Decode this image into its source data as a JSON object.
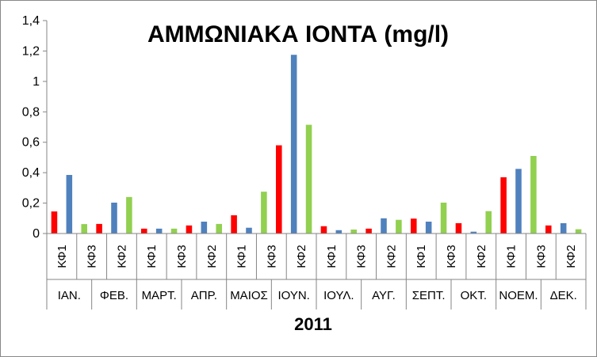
{
  "chart_data": {
    "type": "bar",
    "title": "ΑΜΜΩΝΙΑΚΑ ΙΟΝΤΑ (mg/l)",
    "xlabel": "2011",
    "ylabel": "",
    "ylim": [
      0,
      1.4
    ],
    "y_ticks": [
      "0",
      "0,2",
      "0,4",
      "0,6",
      "0,8",
      "1",
      "1,2",
      "1,4"
    ],
    "y_tick_values": [
      0,
      0.2,
      0.4,
      0.6,
      0.8,
      1.0,
      1.2,
      1.4
    ],
    "grid": false,
    "legend": "none",
    "months": [
      "ΙΑΝ.",
      "ΦΕΒ.",
      "ΜΑΡΤ.",
      "ΑΠΡ.",
      "ΜΑΙΟΣ",
      "ΙΟΥΝ.",
      "ΙΟΥΛ.",
      "ΑΥΓ.",
      "ΣΕΠΤ.",
      "ΟΚΤ.",
      "ΝΟΕΜ.",
      "ΔΕΚ."
    ],
    "categories": [
      "ΚΦ1",
      "ΚΦ2",
      "ΚΦ3",
      "ΚΦ1",
      "ΚΦ2",
      "ΚΦ3",
      "ΚΦ1",
      "ΚΦ2",
      "ΚΦ3",
      "ΚΦ1",
      "ΚΦ2",
      "ΚΦ3",
      "ΚΦ1",
      "ΚΦ2",
      "ΚΦ3",
      "ΚΦ1",
      "ΚΦ2",
      "ΚΦ3",
      "ΚΦ1",
      "ΚΦ2",
      "ΚΦ3",
      "ΚΦ1",
      "ΚΦ2",
      "ΚΦ3",
      "ΚΦ1",
      "ΚΦ2",
      "ΚΦ3",
      "ΚΦ1",
      "ΚΦ2",
      "ΚΦ3",
      "ΚΦ1",
      "ΚΦ2",
      "ΚΦ3",
      "ΚΦ1",
      "ΚΦ2",
      "ΚΦ3"
    ],
    "visible_category_labels": [
      "ΚΦ1",
      "",
      "ΚΦ3",
      "",
      "ΚΦ2",
      "",
      "ΚΦ1",
      "",
      "ΚΦ3",
      "",
      "ΚΦ2",
      "",
      "ΚΦ1",
      "",
      "ΚΦ3",
      "",
      "ΚΦ2",
      "",
      "ΚΦ1",
      "",
      "ΚΦ3",
      "",
      "ΚΦ2",
      "",
      "ΚΦ1",
      "",
      "ΚΦ3",
      "",
      "ΚΦ2",
      "",
      "ΚΦ1",
      "",
      "ΚΦ3",
      "",
      "ΚΦ2",
      ""
    ],
    "values": [
      0.145,
      0.385,
      0.062,
      0.063,
      0.203,
      0.24,
      0.032,
      0.032,
      0.032,
      0.053,
      0.078,
      0.063,
      0.12,
      0.038,
      0.275,
      0.58,
      1.175,
      0.715,
      0.048,
      0.022,
      0.026,
      0.032,
      0.1,
      0.09,
      0.098,
      0.078,
      0.203,
      0.068,
      0.012,
      0.147,
      0.37,
      0.425,
      0.51,
      0.053,
      0.068,
      0.028
    ],
    "bar_colors": [
      "#ff0000",
      "#4f81bd",
      "#92d050"
    ]
  }
}
